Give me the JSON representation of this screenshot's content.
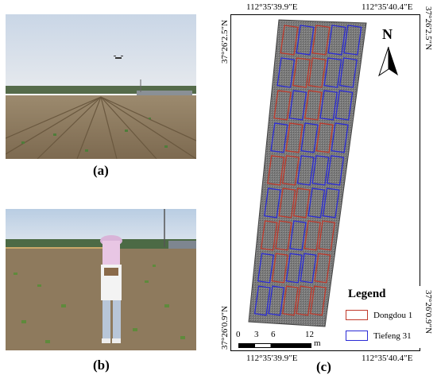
{
  "captions": {
    "a": "(a)",
    "b": "(b)",
    "c": "(c)"
  },
  "map": {
    "coords": {
      "top_left": "112°35′39.9″E",
      "top_right": "112°35′40.4″E",
      "bottom_left": "112°35′39.9″E",
      "bottom_right": "112°35′40.4″E",
      "left_top": "37°26′2.5″N",
      "left_bottom": "37°26′0.9″N",
      "right_top": "37°26′2.5″N",
      "right_bottom": "37°26′0.9″N"
    },
    "north_label": "N",
    "legend": {
      "title": "Legend",
      "items": [
        {
          "label": "Dongdou 1",
          "color": "#c0392b"
        },
        {
          "label": "Tiefeng 31",
          "color": "#2b2bd6"
        }
      ]
    },
    "scale": {
      "ticks": [
        "0",
        "3",
        "6",
        "12"
      ],
      "unit": "m"
    }
  }
}
